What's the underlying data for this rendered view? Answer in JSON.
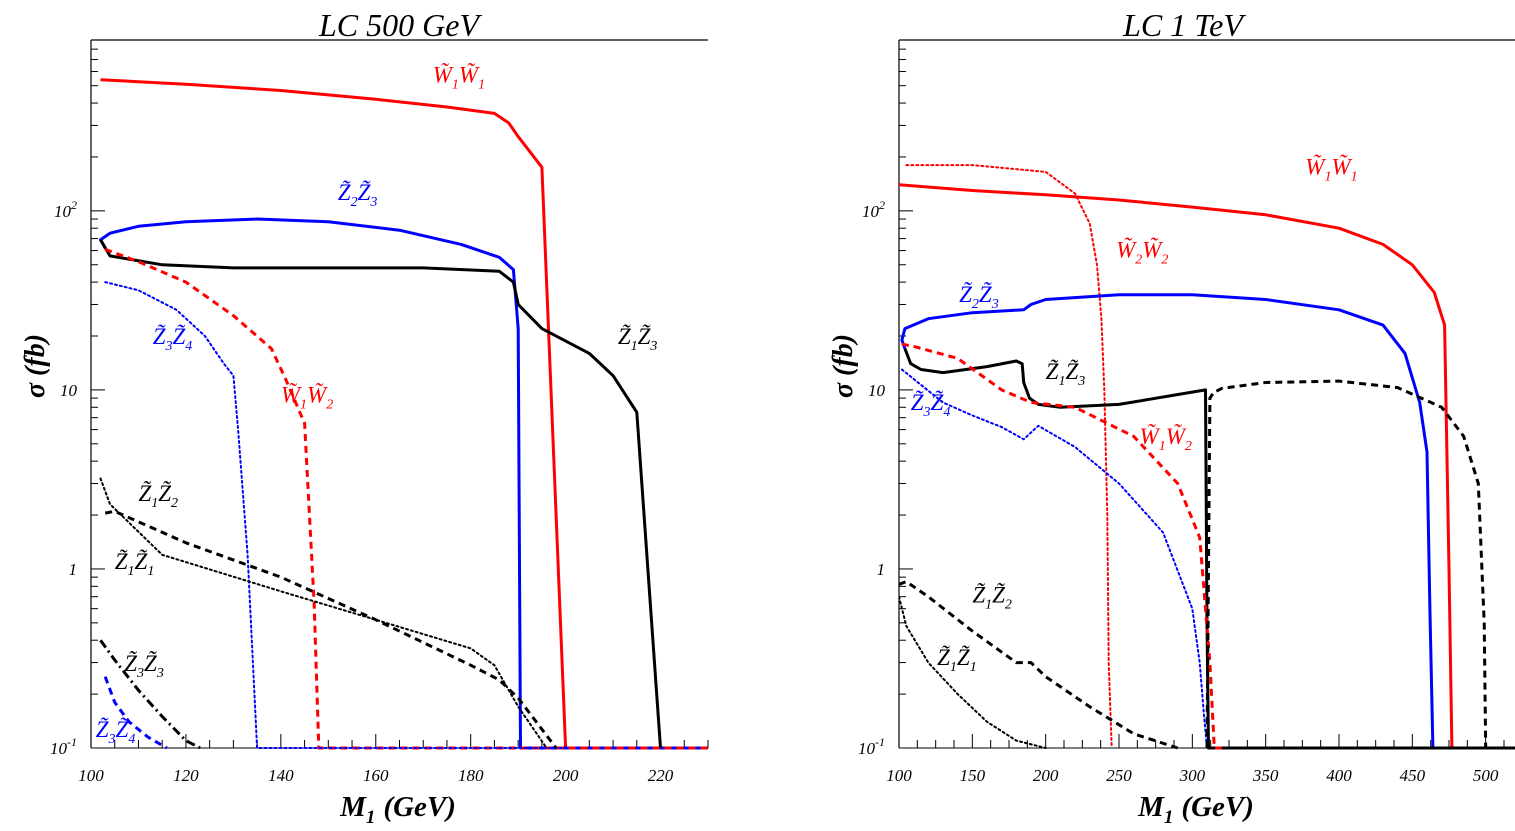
{
  "chart_data": [
    {
      "type": "line",
      "title": "LC 500 GeV",
      "xlabel": "M",
      "xlabel_sub": "1",
      "xlabel_unit": "(GeV)",
      "ylabel": "σ (fb)",
      "yscale": "log",
      "xlim": [
        100,
        230
      ],
      "ylim": [
        0.1,
        900
      ],
      "xticks": [
        100,
        120,
        140,
        160,
        180,
        200,
        220
      ],
      "ytick_labels": [
        {
          "value": 0.1,
          "base": "10",
          "exp": "-1"
        },
        {
          "value": 1,
          "base": "1",
          "exp": ""
        },
        {
          "value": 10,
          "base": "10",
          "exp": ""
        },
        {
          "value": 100,
          "base": "10",
          "exp": "2"
        }
      ],
      "series": [
        {
          "name": "W̃1W̃1",
          "color": "#ff0000",
          "style": "solid",
          "x": [
            102,
            120,
            140,
            160,
            175,
            185,
            188,
            190,
            195,
            200,
            230
          ],
          "y": [
            540,
            510,
            470,
            420,
            380,
            350,
            310,
            260,
            175,
            0.1,
            0.1
          ]
        },
        {
          "name": "Z̃2Z̃3",
          "color": "#0000ff",
          "style": "solid",
          "x": [
            103,
            102,
            104,
            110,
            120,
            135,
            150,
            165,
            178,
            186,
            189,
            190,
            190.5,
            191,
            230
          ],
          "y": [
            62,
            69,
            75,
            82,
            87,
            90,
            87,
            78,
            65,
            55,
            47,
            22,
            0.1,
            0.1,
            0.1
          ]
        },
        {
          "name": "Z̃1Z̃3",
          "color": "#000000",
          "style": "solid",
          "x": [
            102,
            104,
            115,
            130,
            150,
            170,
            186,
            189,
            190,
            195,
            205,
            210,
            215,
            220
          ],
          "y": [
            69,
            56,
            50,
            48,
            48,
            48,
            46,
            40,
            30,
            22,
            16,
            12,
            7.5,
            0.1
          ]
        },
        {
          "name": "W̃1W̃2",
          "color": "#ff0000",
          "style": "dashed",
          "x": [
            103,
            110,
            120,
            130,
            138,
            141,
            145,
            147,
            148,
            150,
            230
          ],
          "y": [
            61,
            52,
            40,
            26,
            17,
            11.5,
            6.5,
            0.65,
            0.1,
            0.1,
            0.1
          ]
        },
        {
          "name": "Z̃3Z̃4",
          "color": "#0000ff",
          "style": "dotted",
          "x": [
            103,
            110,
            118,
            124,
            128,
            130,
            131,
            133,
            135,
            140,
            200
          ],
          "y": [
            40,
            36,
            28,
            20,
            14,
            12,
            6,
            1.2,
            0.1,
            0.1,
            0.1
          ]
        },
        {
          "name": "Z̃1Z̃2",
          "color": "#000000",
          "style": "dashed",
          "x": [
            103,
            105,
            120,
            140,
            160,
            180,
            186,
            190,
            198
          ],
          "y": [
            2.05,
            2.1,
            1.4,
            0.9,
            0.52,
            0.29,
            0.24,
            0.19,
            0.1
          ]
        },
        {
          "name": "Z̃1Z̃1",
          "color": "#000000",
          "style": "dotted",
          "x": [
            102,
            104,
            115,
            140,
            160,
            180,
            185,
            190,
            196
          ],
          "y": [
            3.2,
            2.3,
            1.2,
            0.75,
            0.52,
            0.36,
            0.29,
            0.17,
            0.1
          ]
        },
        {
          "name": "Z̃3Z̃3",
          "color": "#000000",
          "style": "dashdot",
          "x": [
            102,
            105,
            110,
            115,
            120,
            123
          ],
          "y": [
            0.4,
            0.31,
            0.21,
            0.15,
            0.11,
            0.1
          ]
        },
        {
          "name": "Z̃3Z̃4",
          "color": "#0000ff",
          "style": "dashed",
          "x": [
            103,
            105,
            108,
            112,
            116
          ],
          "y": [
            0.25,
            0.18,
            0.14,
            0.115,
            0.1
          ]
        }
      ],
      "annotations": [
        {
          "text": "W̃",
          "sub": "1",
          "text2": "W̃",
          "sub2": "1",
          "color": "#ff0000",
          "x": 172,
          "y": 520
        },
        {
          "text": "Z̃",
          "sub": "2",
          "text2": "Z̃",
          "sub2": "3",
          "color": "#0000ff",
          "x": 152,
          "y": 115
        },
        {
          "text": "Z̃",
          "sub": "1",
          "text2": "Z̃",
          "sub2": "3",
          "color": "#000000",
          "x": 211,
          "y": 18
        },
        {
          "text": "Z̃",
          "sub": "3",
          "text2": "Z̃",
          "sub2": "4",
          "color": "#0000ff",
          "x": 113,
          "y": 18
        },
        {
          "text": "W̃",
          "sub": "1",
          "text2": "W̃",
          "sub2": "2",
          "color": "#ff0000",
          "x": 140,
          "y": 8.5
        },
        {
          "text": "Z̃",
          "sub": "1",
          "text2": "Z̃",
          "sub2": "2",
          "color": "#000000",
          "x": 110,
          "y": 2.4
        },
        {
          "text": "Z̃",
          "sub": "1",
          "text2": "Z̃",
          "sub2": "1",
          "color": "#000000",
          "x": 105,
          "y": 1.0
        },
        {
          "text": "Z̃",
          "sub": "3",
          "text2": "Z̃",
          "sub2": "3",
          "color": "#000000",
          "x": 107,
          "y": 0.27
        },
        {
          "text": "Z̃",
          "sub": "3",
          "text2": "Z̃",
          "sub2": "4",
          "color": "#0000ff",
          "x": 101,
          "y": 0.115
        }
      ]
    },
    {
      "type": "line",
      "title": "LC 1 TeV",
      "xlabel": "M",
      "xlabel_sub": "1",
      "xlabel_unit": "(GeV)",
      "ylabel": "σ (fb)",
      "yscale": "log",
      "xlim": [
        100,
        520
      ],
      "ylim": [
        0.1,
        900
      ],
      "xticks": [
        100,
        150,
        200,
        250,
        300,
        350,
        400,
        450,
        500
      ],
      "ytick_labels": [
        {
          "value": 0.1,
          "base": "10",
          "exp": "-1"
        },
        {
          "value": 1,
          "base": "1",
          "exp": ""
        },
        {
          "value": 10,
          "base": "10",
          "exp": ""
        },
        {
          "value": 100,
          "base": "10",
          "exp": "2"
        }
      ],
      "series": [
        {
          "name": "W̃1W̃1",
          "color": "#ff0000",
          "style": "solid",
          "x": [
            100,
            150,
            200,
            250,
            300,
            350,
            400,
            430,
            450,
            465,
            472,
            475,
            477,
            478,
            520
          ],
          "y": [
            140,
            130,
            123,
            115,
            105,
            95,
            80,
            65,
            50,
            35,
            23,
            1,
            0.1,
            0.1,
            0.1
          ]
        },
        {
          "name": "W̃2W̃2",
          "color": "#ff0000",
          "style": "dotted",
          "x": [
            105,
            150,
            200,
            220,
            230,
            235,
            238,
            240,
            242,
            243,
            245
          ],
          "y": [
            180,
            180,
            165,
            125,
            85,
            50,
            25,
            10,
            2,
            0.3,
            0.1
          ]
        },
        {
          "name": "Z̃2Z̃3",
          "color": "#0000ff",
          "style": "solid",
          "x": [
            104,
            102,
            104,
            120,
            150,
            185,
            190,
            200,
            250,
            300,
            350,
            400,
            430,
            445,
            455,
            460,
            462,
            464,
            520
          ],
          "y": [
            17,
            19,
            22,
            25,
            27,
            28,
            30,
            32,
            34,
            34,
            32,
            28,
            23,
            16,
            8.5,
            4.5,
            0.6,
            0.1,
            0.1
          ]
        },
        {
          "name": "Z̃1Z̃3",
          "color": "#000000",
          "style": "solid",
          "x": [
            104,
            108,
            115,
            130,
            160,
            180,
            184,
            185,
            189,
            195,
            210,
            250,
            309,
            310,
            311,
            312,
            520
          ],
          "y": [
            17,
            14,
            13,
            12.5,
            13.5,
            14.5,
            14,
            11,
            9,
            8.3,
            8,
            8.3,
            10,
            0.5,
            0.1,
            0.1,
            0.1
          ]
        },
        {
          "name": "W̃1W̃2",
          "color": "#ff0000",
          "style": "dashed",
          "x": [
            102,
            110,
            140,
            170,
            190,
            220,
            260,
            290,
            305,
            312,
            315,
            320
          ],
          "y": [
            18,
            17.5,
            15,
            10,
            8.5,
            8,
            5.5,
            3,
            1.5,
            0.3,
            0.1,
            0.1
          ]
        },
        {
          "name": "Z̃3Z̃4",
          "color": "#0000ff",
          "style": "dotted",
          "x": [
            102,
            110,
            130,
            150,
            170,
            185,
            195,
            220,
            250,
            280,
            300,
            305,
            308,
            310
          ],
          "y": [
            13,
            11.5,
            8.5,
            7.2,
            6.2,
            5.3,
            6.3,
            4.8,
            3,
            1.6,
            0.6,
            0.3,
            0.15,
            0.1
          ]
        },
        {
          "name": "",
          "color": "#000000",
          "style": "dashed",
          "x": [
            310,
            312,
            315,
            316,
            320,
            350,
            400,
            440,
            470,
            485,
            495,
            499,
            500
          ],
          "y": [
            0.1,
            9,
            9.8,
            9.8,
            10.2,
            11,
            11.2,
            10.3,
            8,
            5.5,
            3,
            0.5,
            0.1
          ]
        },
        {
          "name": "Z̃1Z̃2",
          "color": "#000000",
          "style": "dashed",
          "x": [
            100,
            105,
            120,
            150,
            180,
            190,
            200,
            230,
            260,
            290
          ],
          "y": [
            0.82,
            0.85,
            0.7,
            0.45,
            0.3,
            0.3,
            0.25,
            0.17,
            0.12,
            0.1
          ]
        },
        {
          "name": "Z̃1Z̃1",
          "color": "#000000",
          "style": "dotted",
          "x": [
            100,
            105,
            120,
            140,
            160,
            180,
            200
          ],
          "y": [
            0.7,
            0.48,
            0.3,
            0.2,
            0.14,
            0.11,
            0.1
          ]
        }
      ],
      "annotations": [
        {
          "text": "W̃",
          "sub": "1",
          "text2": "W̃",
          "sub2": "1",
          "color": "#ff0000",
          "x": 377,
          "y": 160
        },
        {
          "text": "W̃",
          "sub": "2",
          "text2": "W̃",
          "sub2": "2",
          "color": "#ff0000",
          "x": 248,
          "y": 55
        },
        {
          "text": "Z̃",
          "sub": "2",
          "text2": "Z̃",
          "sub2": "3",
          "color": "#0000ff",
          "x": 141,
          "y": 31
        },
        {
          "text": "Z̃",
          "sub": "1",
          "text2": "Z̃",
          "sub2": "3",
          "color": "#000000",
          "x": 200,
          "y": 11.5
        },
        {
          "text": "Z̃",
          "sub": "3",
          "text2": "Z̃",
          "sub2": "4",
          "color": "#0000ff",
          "x": 108,
          "y": 7.7
        },
        {
          "text": "W̃",
          "sub": "1",
          "text2": "W̃",
          "sub2": "2",
          "color": "#ff0000",
          "x": 264,
          "y": 5.0
        },
        {
          "text": "Z̃",
          "sub": "1",
          "text2": "Z̃",
          "sub2": "2",
          "color": "#000000",
          "x": 150,
          "y": 0.65
        },
        {
          "text": "Z̃",
          "sub": "1",
          "text2": "Z̃",
          "sub2": "1",
          "color": "#000000",
          "x": 126,
          "y": 0.29
        }
      ]
    }
  ]
}
